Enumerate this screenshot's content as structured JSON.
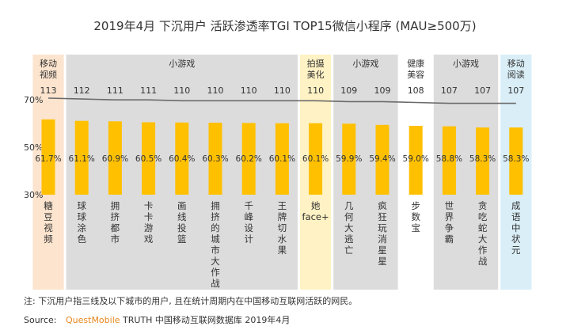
{
  "chart_data": {
    "type": "bar",
    "title": "2019年4月 下沉用户  活跃渗透率TGI TOP15微信小程序    (MAU≥500万)",
    "categories": [
      "糖豆视频",
      "球球涂色",
      "拥挤都市",
      "卡卡游戏",
      "画线投篮",
      "拥挤的城市大作战",
      "千峰设计",
      "王牌切水果",
      "她face+",
      "几何大逃亡",
      "疯狂玩消星星",
      "步数宝",
      "世界争霸",
      "贪吃蛇大作战",
      "成语中状元"
    ],
    "penetration_pct": [
      61.7,
      61.1,
      60.9,
      60.5,
      60.4,
      60.3,
      60.2,
      60.1,
      60.1,
      59.9,
      59.4,
      59.0,
      58.8,
      58.3,
      58.3
    ],
    "penetration_labels": [
      "61.7%",
      "61.1%",
      "60.9%",
      "60.5%",
      "60.4%",
      "60.3%",
      "60.2%",
      "60.1%",
      "60.1%",
      "59.9%",
      "59.4%",
      "59.0%",
      "58.8%",
      "58.3%",
      "58.3%"
    ],
    "tgi": [
      113,
      112,
      111,
      111,
      110,
      110,
      110,
      110,
      110,
      109,
      109,
      108,
      107,
      107,
      107
    ],
    "group_labels": [
      "移动视频",
      "小游戏",
      "拍摄美化",
      "小游戏",
      "健康美容",
      "小游戏",
      "移动阅读"
    ],
    "y_ticks": [
      "70%",
      "50%",
      "30%"
    ],
    "ylim": [
      30,
      70
    ],
    "colors": {
      "bar": "#FFC000",
      "tgi_line": "#6B6B6B",
      "band_video": "#FCE4CE",
      "band_game": "#DCDCDC",
      "band_photo": "#FFF2C4",
      "band_health": "#FFFFFF",
      "band_reading": "#D9EEF7"
    }
  },
  "footer": {
    "note": "注:  下沉用户指三线及以下城市的用户, 且在统计周期内在中国移动互联网活跃的网民。",
    "source_prefix": "Source:",
    "source_brand": "QuestMobile",
    "source_rest": " TRUTH 中国移动互联网数据库 2019年4月"
  }
}
